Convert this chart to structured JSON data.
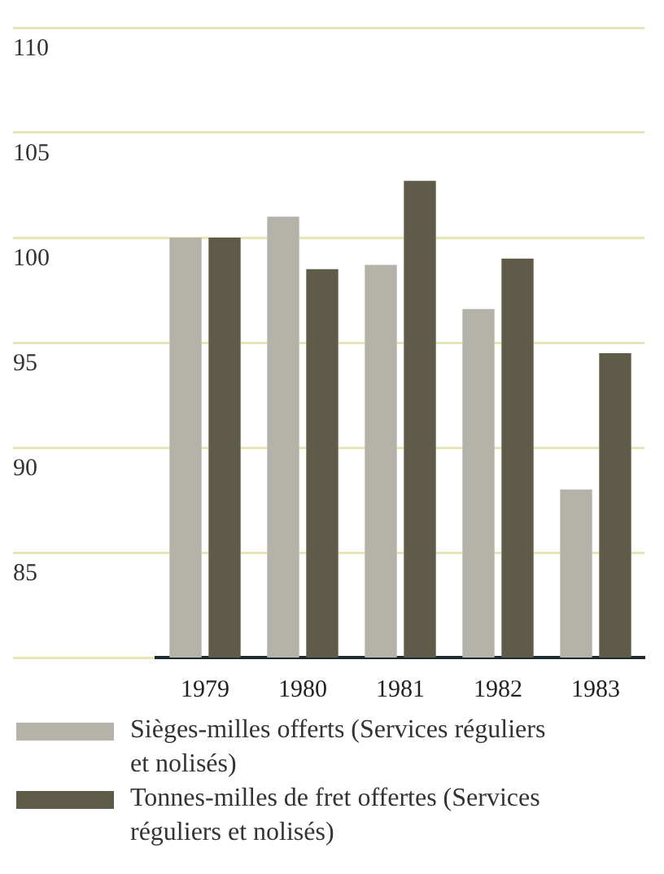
{
  "chart_data": {
    "type": "bar",
    "categories": [
      "1979",
      "1980",
      "1981",
      "1982",
      "1983"
    ],
    "series": [
      {
        "name": "Sièges-milles offerts (Services réguliers et nolisés)",
        "color": "#b5b3a9",
        "values": [
          100,
          101,
          98.7,
          96.6,
          88
        ]
      },
      {
        "name": "Tonnes-milles de fret offertes (Services réguliers et nolisés)",
        "color": "#5f5b49",
        "values": [
          100,
          98.5,
          102.7,
          99,
          94.5
        ]
      }
    ],
    "ylim": [
      80,
      110
    ],
    "yticks": [
      {
        "value": 80,
        "label": null
      },
      85,
      90,
      95,
      100,
      105,
      110
    ],
    "grid": "y",
    "legend": "bottom"
  }
}
